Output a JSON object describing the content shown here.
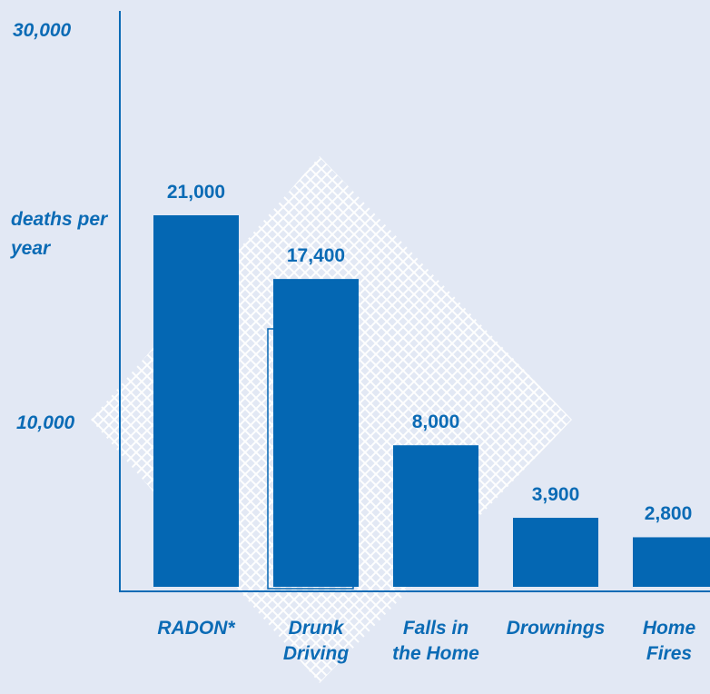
{
  "chart_data": {
    "type": "bar",
    "ylabel": "deaths per year",
    "ytick_labels": [
      "30,000",
      "10,000"
    ],
    "categories": [
      "RADON*",
      "Drunk Driving",
      "Falls in the Home",
      "Drownings",
      "Home Fires"
    ],
    "category_lines": [
      [
        "RADON*"
      ],
      [
        "Drunk",
        "Driving"
      ],
      [
        "Falls in",
        "the Home"
      ],
      [
        "Drownings"
      ],
      [
        "Home",
        "Fires"
      ]
    ],
    "values": [
      21000,
      17400,
      8000,
      3900,
      2800
    ],
    "value_labels": [
      "21,000",
      "17,400",
      "8,000",
      "3,900",
      "2,800"
    ],
    "ylim": [
      0,
      30000
    ],
    "grid": false,
    "colors": {
      "bar": "#0467b3",
      "text": "#0b6bb5",
      "background": "#e2e8f4",
      "hatch": "#ffffff"
    }
  }
}
